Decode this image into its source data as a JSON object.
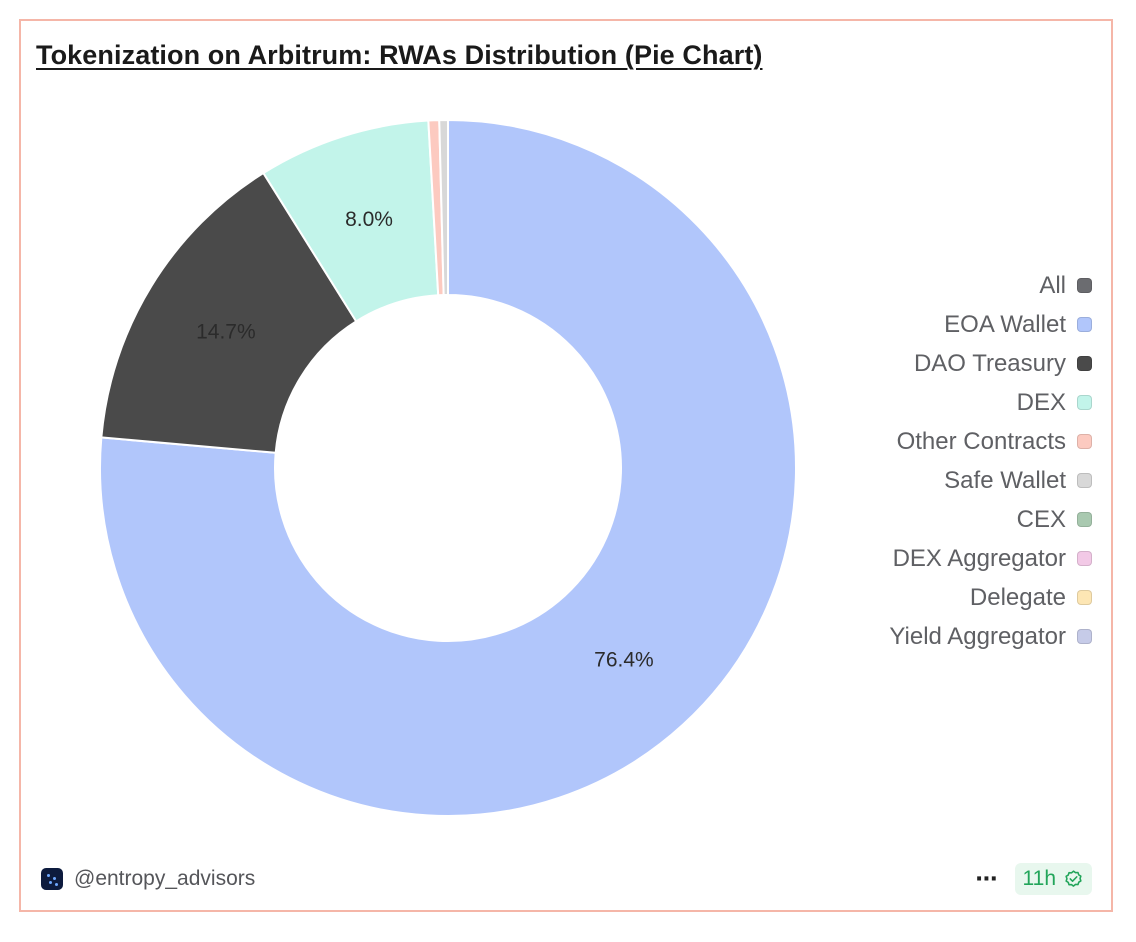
{
  "title": "Tokenization on Arbitrum: RWAs Distribution (Pie Chart)",
  "chart_data": {
    "type": "pie",
    "style": "donut",
    "title": "Tokenization on Arbitrum: RWAs Distribution (Pie Chart)",
    "slices": [
      {
        "name": "EOA Wallet",
        "value": 76.4,
        "color": "#b1c6fb",
        "label": "76.4%"
      },
      {
        "name": "DAO Treasury",
        "value": 14.7,
        "color": "#4a4a4a",
        "label": "14.7%"
      },
      {
        "name": "DEX",
        "value": 8.0,
        "color": "#c2f4ea",
        "label": "8.0%"
      },
      {
        "name": "Other Contracts",
        "value": 0.5,
        "color": "#fccac0",
        "label": ""
      },
      {
        "name": "Safe Wallet",
        "value": 0.4,
        "color": "#d8d8d8",
        "label": ""
      }
    ],
    "legend": {
      "placement": "right",
      "items": [
        {
          "label": "All",
          "color": "#6b6c70"
        },
        {
          "label": "EOA Wallet",
          "color": "#b1c6fb"
        },
        {
          "label": "DAO Treasury",
          "color": "#4a4a4a"
        },
        {
          "label": "DEX",
          "color": "#c2f4ea"
        },
        {
          "label": "Other Contracts",
          "color": "#fccac0"
        },
        {
          "label": "Safe Wallet",
          "color": "#d8d8d8"
        },
        {
          "label": "CEX",
          "color": "#a9c9b0"
        },
        {
          "label": "DEX Aggregator",
          "color": "#f2c9e6"
        },
        {
          "label": "Delegate",
          "color": "#fde6b4"
        },
        {
          "label": "Yield Aggregator",
          "color": "#c6cbe8"
        }
      ]
    }
  },
  "footer": {
    "author": "@entropy_advisors",
    "more_icon": "more-horizontal-icon",
    "age": "11h",
    "age_icon": "verified-check-icon",
    "age_color": "#22a55a"
  }
}
